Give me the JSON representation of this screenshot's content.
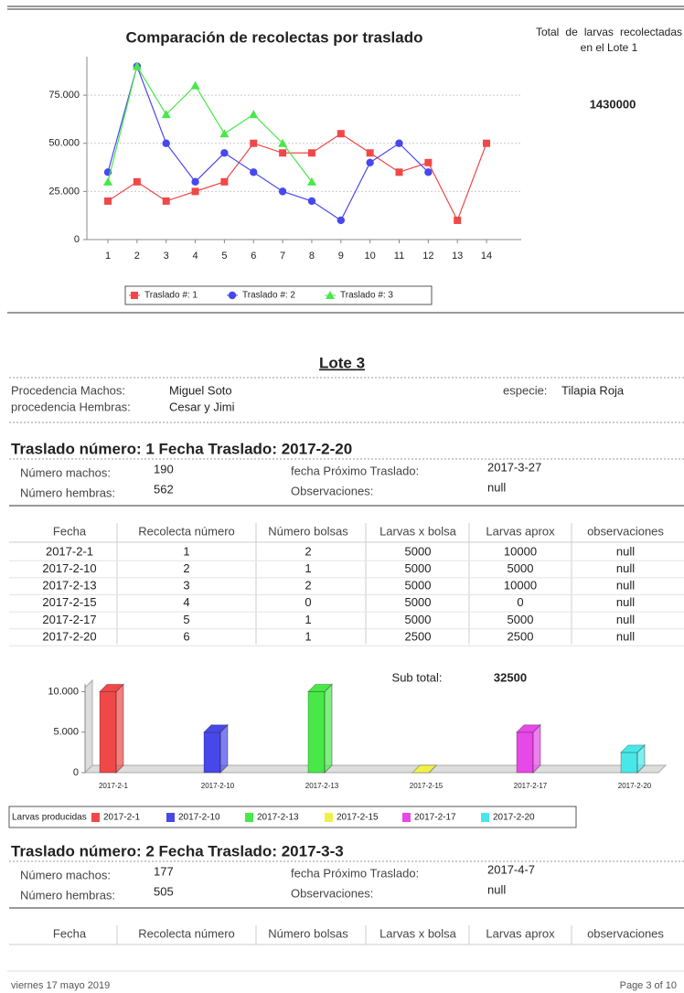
{
  "line_chart": {
    "type": "line",
    "title": "Comparación de recolectas por traslado",
    "categories": [
      "1",
      "2",
      "3",
      "4",
      "5",
      "6",
      "7",
      "8",
      "9",
      "10",
      "11",
      "12",
      "13",
      "14"
    ],
    "series": [
      {
        "name": "Traslado #: 1",
        "color": "#f04848",
        "marker": "square",
        "values": [
          20000,
          30000,
          20000,
          25000,
          30000,
          50000,
          45000,
          45000,
          55000,
          45000,
          35000,
          40000,
          10000,
          50000
        ]
      },
      {
        "name": "Traslado #: 2",
        "color": "#4848f0",
        "marker": "circle",
        "values": [
          35000,
          90000,
          50000,
          30000,
          45000,
          35000,
          25000,
          20000,
          10000,
          40000,
          50000,
          35000,
          null,
          null
        ]
      },
      {
        "name": "Traslado #: 3",
        "color": "#48e848",
        "marker": "triangle",
        "values": [
          30000,
          90000,
          65000,
          80000,
          55000,
          65000,
          50000,
          30000,
          null,
          null,
          null,
          null,
          null,
          null
        ]
      }
    ],
    "ylim": [
      0,
      95000
    ],
    "yticks": [
      0,
      {
        "value": 25000,
        "label": "25.000"
      },
      {
        "value": 50000,
        "label": "50.000"
      },
      {
        "value": 75000,
        "label": "75.000"
      }
    ],
    "grid": true,
    "legend": "bottom"
  },
  "summary": {
    "label": "Total de larvas recolectadas en el Lote 1",
    "value": 1430000
  },
  "lote": {
    "title": "Lote 3",
    "fields": [
      {
        "label": "Procedencia Machos:",
        "value": "Miguel Soto"
      },
      {
        "label": "procedencia Hembras:",
        "value": "Cesar y Jimi"
      },
      {
        "label": "especie:",
        "value": "Tilapia Roja"
      }
    ]
  },
  "traslados": [
    {
      "title": "Traslado número: 1 Fecha Traslado: 2017-2-20",
      "fields": [
        {
          "label": "Número machos:",
          "value": 190
        },
        {
          "label": "Número hembras:",
          "value": 562
        },
        {
          "label": "fecha Próximo Traslado:",
          "value": "2017-3-27"
        },
        {
          "label": "Observaciones:",
          "value": "null"
        }
      ],
      "table": {
        "columns": [
          "Fecha",
          "Recolecta número",
          "Número bolsas",
          "Larvas x bolsa",
          "Larvas aprox",
          "observaciones"
        ],
        "rows": [
          [
            "2017-2-1",
            1,
            2,
            5000,
            10000,
            "null"
          ],
          [
            "2017-2-10",
            2,
            1,
            5000,
            5000,
            "null"
          ],
          [
            "2017-2-13",
            3,
            2,
            5000,
            10000,
            "null"
          ],
          [
            "2017-2-15",
            4,
            0,
            5000,
            0,
            "null"
          ],
          [
            "2017-2-17",
            5,
            1,
            5000,
            5000,
            "null"
          ],
          [
            "2017-2-20",
            6,
            1,
            2500,
            2500,
            "null"
          ]
        ]
      },
      "subtotal": {
        "label": "Sub total:",
        "value": 32500
      },
      "chart": {
        "type": "bar3d",
        "categories": [
          "2017-2-1",
          "2017-2-10",
          "2017-2-13",
          "2017-2-15",
          "2017-2-17",
          "2017-2-20"
        ],
        "values": [
          10000,
          5000,
          10000,
          0,
          5000,
          2500
        ],
        "colors": [
          "#f04848",
          "#4848e8",
          "#48e848",
          "#f0f048",
          "#e848e8",
          "#48e8e8"
        ],
        "ylim": [
          0,
          10500
        ],
        "yticks": [
          0,
          {
            "value": 5000,
            "label": "5.000"
          },
          {
            "value": 10000,
            "label": "10.000"
          }
        ],
        "legend_title": "Larvas producidas"
      }
    },
    {
      "title": "Traslado número: 2 Fecha Traslado: 2017-3-3",
      "fields": [
        {
          "label": "Número machos:",
          "value": 177
        },
        {
          "label": "Número hembras:",
          "value": 505
        },
        {
          "label": "fecha Próximo Traslado:",
          "value": "2017-4-7"
        },
        {
          "label": "Observaciones:",
          "value": "null"
        }
      ],
      "table": {
        "columns": [
          "Fecha",
          "Recolecta número",
          "Número bolsas",
          "Larvas x bolsa",
          "Larvas aprox",
          "observaciones"
        ],
        "rows": []
      }
    }
  ],
  "footer": {
    "date": "viernes 17 mayo 2019",
    "page": "Page 3 of 10"
  }
}
